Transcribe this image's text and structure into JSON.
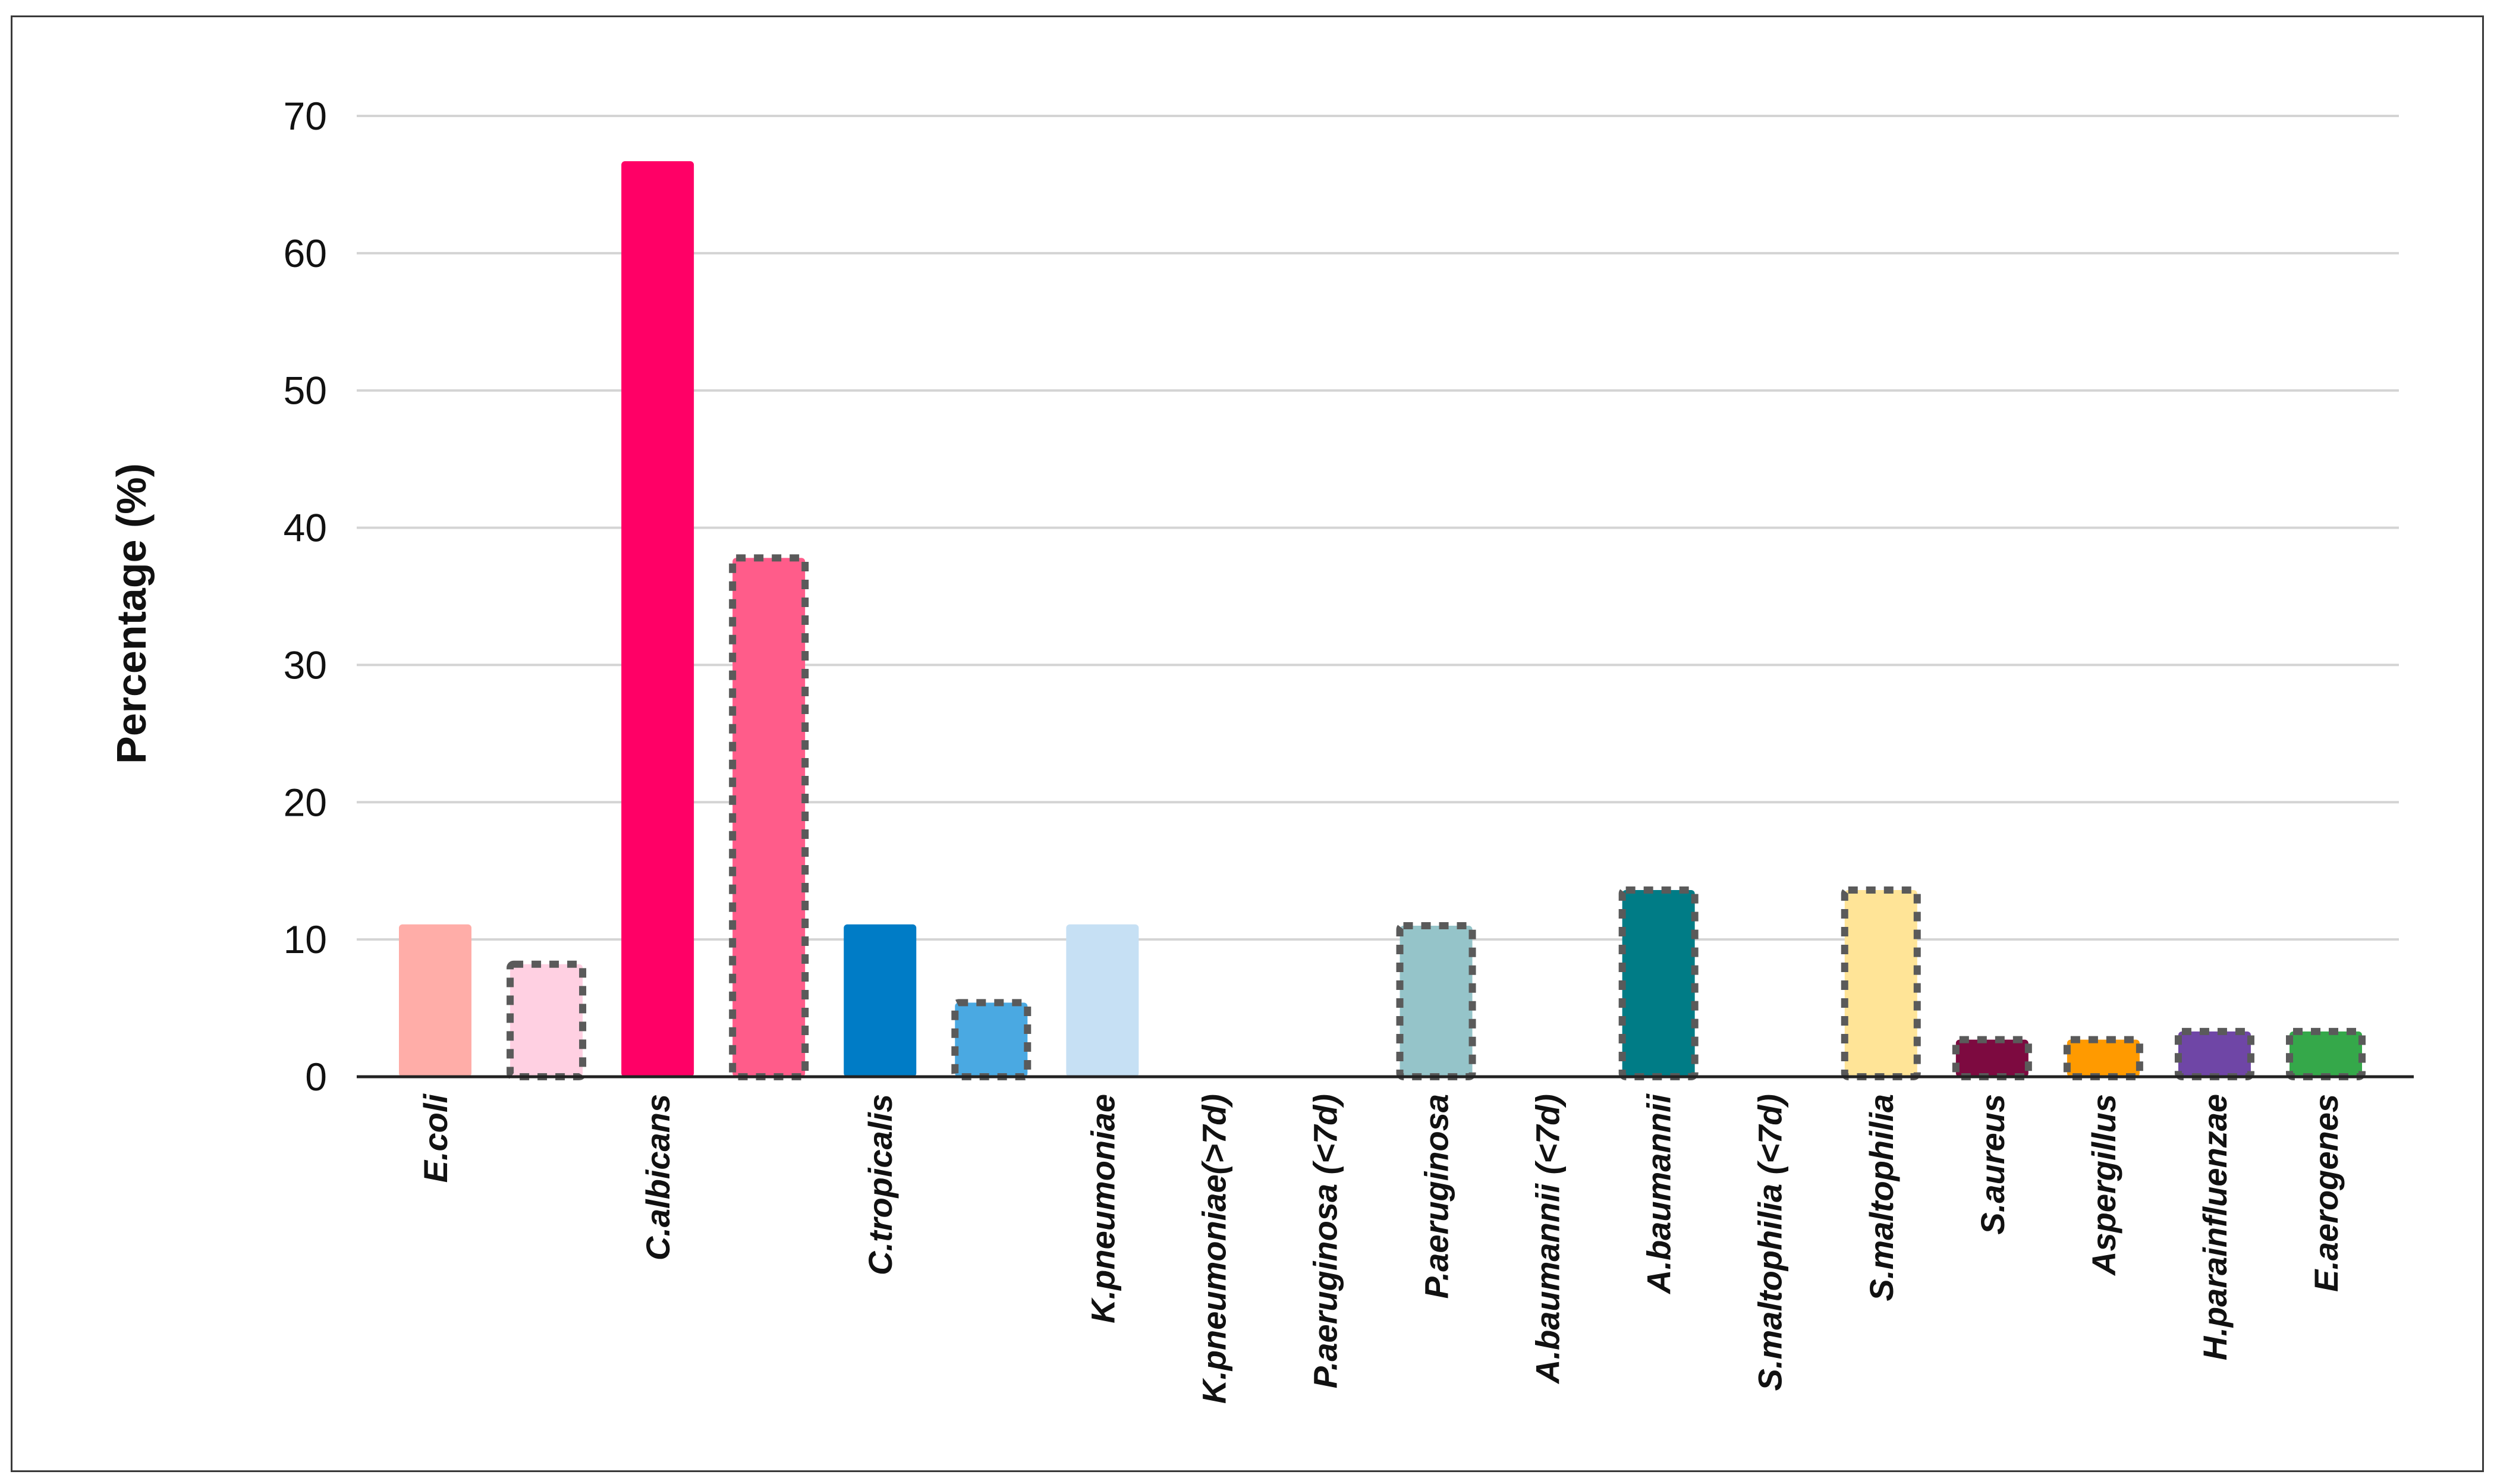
{
  "chart_data": {
    "type": "bar",
    "title": "",
    "xlabel": "",
    "ylabel": "Percentage (%)",
    "ylim": [
      0,
      70
    ],
    "yticks": [
      0,
      10,
      20,
      30,
      40,
      50,
      60,
      70
    ],
    "grid": true,
    "bars": [
      {
        "label": "E.coli",
        "value": 11.1,
        "color": "#FFADA8",
        "dashed": false
      },
      {
        "label": "",
        "value": 8.2,
        "color": "#FFD0E2",
        "dashed": true
      },
      {
        "label": "C.albicans",
        "value": 66.7,
        "color": "#FF0066",
        "dashed": false
      },
      {
        "label": "",
        "value": 37.8,
        "color": "#FF5C8A",
        "dashed": true
      },
      {
        "label": "C.tropicalis",
        "value": 11.1,
        "color": "#007CC6",
        "dashed": false
      },
      {
        "label": "",
        "value": 5.4,
        "color": "#4AA9E2",
        "dashed": true
      },
      {
        "label": "K.pneumoniae",
        "value": 11.1,
        "color": "#C6E0F4",
        "dashed": false
      },
      {
        "label": "K.pneumoniae(>7d)",
        "value": 0,
        "color": "#C6E0F4",
        "dashed": true
      },
      {
        "label": "P.aeruginosa (<7d)",
        "value": 0,
        "color": "#95C4C9",
        "dashed": false
      },
      {
        "label": "P.aeruginosa",
        "value": 11.0,
        "color": "#95C4C9",
        "dashed": true
      },
      {
        "label": "A.baumannii (<7d)",
        "value": 0,
        "color": "#007C86",
        "dashed": false
      },
      {
        "label": "A.baumannii",
        "value": 13.6,
        "color": "#007C86",
        "dashed": true
      },
      {
        "label": "S.maltophilia (<7d)",
        "value": 0,
        "color": "#FFE497",
        "dashed": false
      },
      {
        "label": "S.maltophilia",
        "value": 13.6,
        "color": "#FFE497",
        "dashed": true
      },
      {
        "label": "S.aureus",
        "value": 2.7,
        "color": "#7D0A40",
        "dashed": true
      },
      {
        "label": "Aspergillus",
        "value": 2.7,
        "color": "#FF9A00",
        "dashed": true
      },
      {
        "label": "H.parainfluenzae",
        "value": 3.3,
        "color": "#6F46A6",
        "dashed": true
      },
      {
        "label": "E.aerogenes",
        "value": 3.3,
        "color": "#35A84A",
        "dashed": true
      }
    ]
  }
}
